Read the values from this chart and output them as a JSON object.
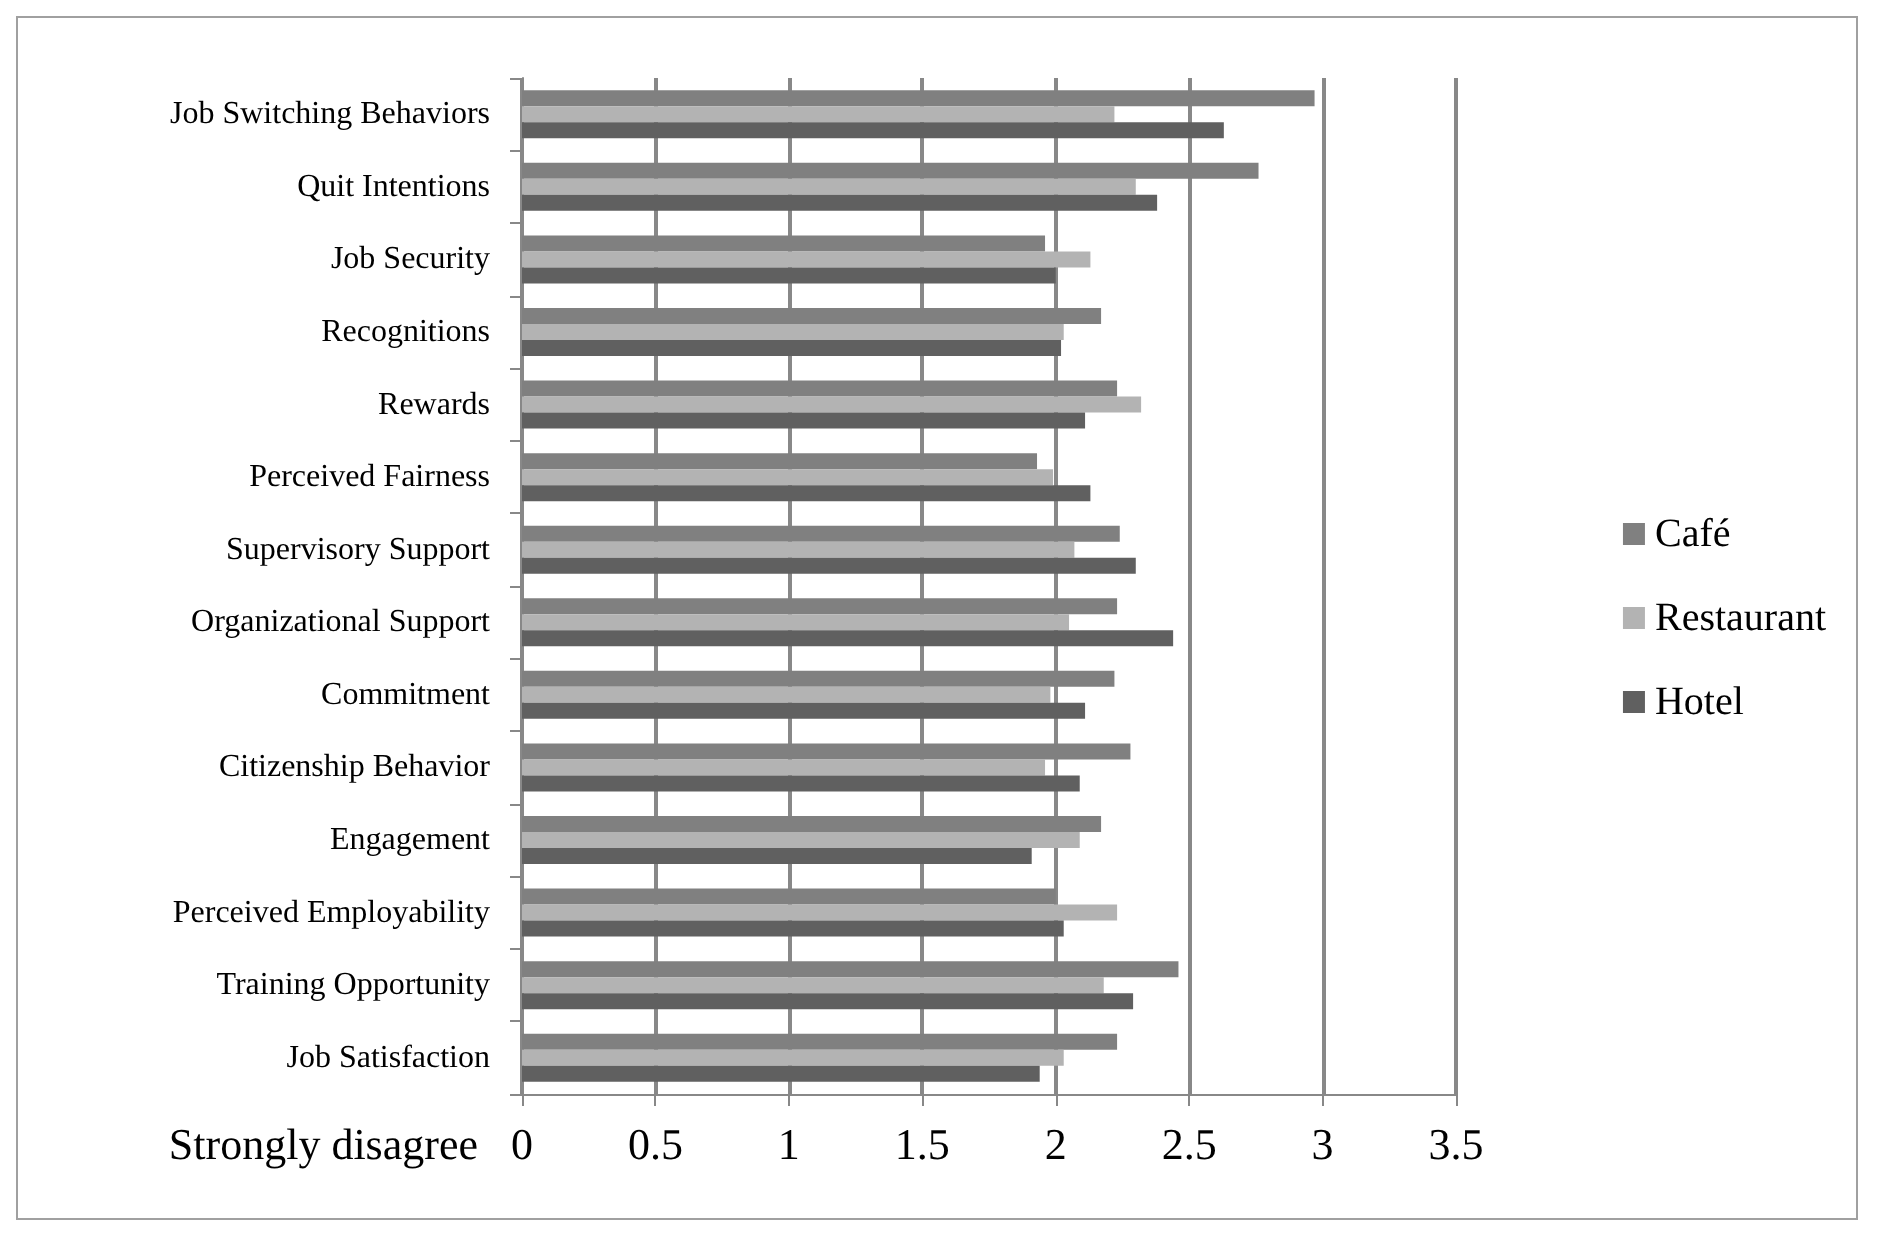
{
  "chart_data": {
    "type": "bar",
    "orientation": "horizontal",
    "xlabel": "Strongly disagree",
    "categories": [
      "Job Switching Behaviors",
      "Quit Intentions",
      "Job Security",
      "Recognitions",
      "Rewards",
      "Perceived Fairness",
      "Supervisory Support",
      "Organizational Support",
      "Commitment",
      "Citizenship Behavior",
      "Engagement",
      "Perceived Employability",
      "Training Opportunity",
      "Job Satisfaction"
    ],
    "series": [
      {
        "name": "Café",
        "color": "#808080",
        "values": [
          2.97,
          2.76,
          1.96,
          2.17,
          2.23,
          1.93,
          2.24,
          2.23,
          2.22,
          2.28,
          2.17,
          2.0,
          2.46,
          2.23
        ]
      },
      {
        "name": "Restaurant",
        "color": "#b3b3b3",
        "values": [
          2.22,
          2.3,
          2.13,
          2.03,
          2.32,
          1.99,
          2.07,
          2.05,
          1.98,
          1.96,
          2.09,
          2.23,
          2.18,
          2.03
        ]
      },
      {
        "name": "Hotel",
        "color": "#606060",
        "values": [
          2.63,
          2.38,
          2.0,
          2.02,
          2.11,
          2.13,
          2.3,
          2.44,
          2.11,
          2.09,
          1.91,
          2.03,
          2.29,
          1.94
        ]
      }
    ],
    "xlim": [
      0,
      3.5
    ],
    "xticks": [
      0,
      0.5,
      1,
      1.5,
      2,
      2.5,
      3,
      3.5
    ],
    "grid": "x",
    "legend": "right"
  }
}
